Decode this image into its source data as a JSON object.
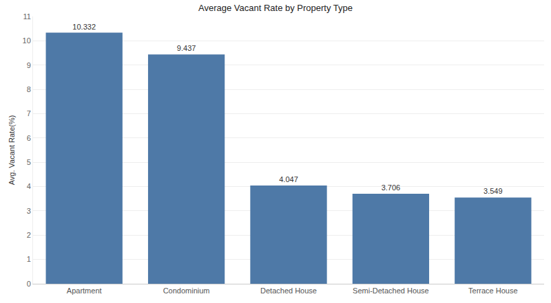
{
  "chart_data": {
    "type": "bar",
    "title": "Average Vacant Rate by Property Type",
    "y_label": "Avg. Vacant Rate(%)",
    "categories": [
      "Apartment",
      "Condominium",
      "Detached House",
      "Semi-Detached House",
      "Terrace House"
    ],
    "values": [
      10.332,
      9.437,
      4.047,
      3.706,
      3.549
    ],
    "color": "#4e79a7",
    "ylim": [
      0,
      11
    ],
    "yticks": [
      0,
      1,
      2,
      3,
      4,
      5,
      6,
      7,
      8,
      9,
      10,
      11
    ],
    "grid": true,
    "data_labels": true
  }
}
